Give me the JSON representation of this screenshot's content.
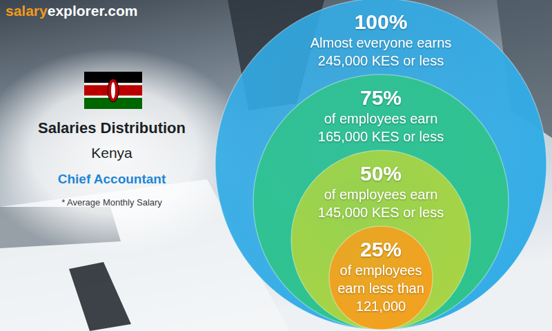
{
  "chart_data": {
    "type": "nested_circles",
    "source": [
      "salary",
      "explorer.com"
    ],
    "title": "Salaries Distribution",
    "subtitle": "Kenya",
    "job": "Chief Accountant",
    "note": "* Average Monthly Salary",
    "percentiles": [
      100,
      75,
      50,
      25
    ],
    "percentile_labels": [
      "100%",
      "75%",
      "50%",
      "25%"
    ],
    "descriptions": [
      [
        "Almost everyone earns"
      ],
      [
        "of employees earn"
      ],
      [
        "of employees earn"
      ],
      [
        "of employees",
        "earn less than"
      ]
    ],
    "values": [
      245000,
      165000,
      145000,
      121000
    ],
    "value_labels": [
      "245,000 KES or less",
      "165,000 KES or less",
      "145,000 KES or less",
      "121,000"
    ],
    "colors": [
      "#33ace6",
      "#2fc38c",
      "#a9d444",
      "#f3a01f"
    ],
    "data_labels": true
  }
}
